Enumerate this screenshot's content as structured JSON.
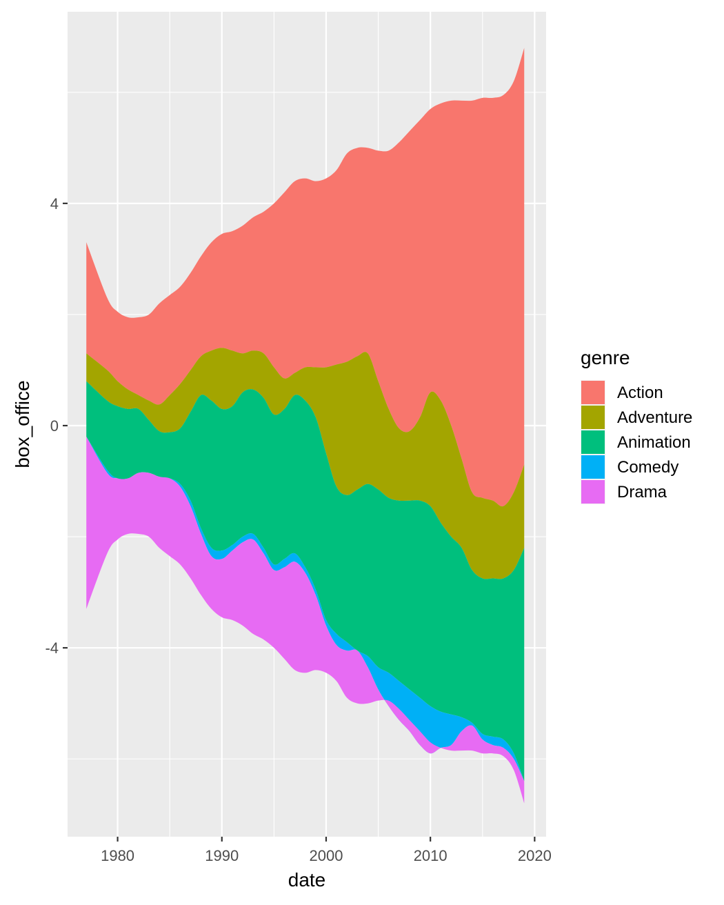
{
  "chart_data": {
    "type": "area",
    "subtype": "streamgraph",
    "xlabel": "date",
    "ylabel": "box_office",
    "xlim": [
      1975.2,
      2021.1
    ],
    "ylim": [
      -7.4,
      7.45
    ],
    "x_ticks": [
      1980,
      1990,
      2000,
      2010,
      2020
    ],
    "y_ticks": [
      -4,
      0,
      4
    ],
    "x_tick_labels": [
      "1980",
      "1990",
      "2000",
      "2010",
      "2020"
    ],
    "y_tick_labels": [
      "-4",
      "0",
      "4"
    ],
    "grid": true,
    "legend": {
      "title": "genre",
      "position": "right"
    },
    "x": [
      1977,
      1979,
      1980,
      1981,
      1982,
      1983,
      1984,
      1985,
      1986,
      1987,
      1988,
      1989,
      1990,
      1991,
      1992,
      1993,
      1994,
      1995,
      1996,
      1997,
      1998,
      1999,
      2000,
      2001,
      2002,
      2003,
      2004,
      2005,
      2006,
      2007,
      2008,
      2009,
      2010,
      2011,
      2012,
      2013,
      2014,
      2015,
      2016,
      2017,
      2018,
      2019
    ],
    "boundaries": {
      "Action_top": [
        3.3,
        2.3,
        2.05,
        1.95,
        1.95,
        2.0,
        2.2,
        2.35,
        2.5,
        2.75,
        3.05,
        3.3,
        3.45,
        3.5,
        3.6,
        3.75,
        3.85,
        4.0,
        4.2,
        4.4,
        4.45,
        4.4,
        4.45,
        4.6,
        4.9,
        5.0,
        5.0,
        4.95,
        4.95,
        5.1,
        5.3,
        5.5,
        5.7,
        5.8,
        5.85,
        5.85,
        5.85,
        5.9,
        5.9,
        5.95,
        6.2,
        6.8
      ],
      "Adventure_top": [
        1.3,
        1.0,
        0.8,
        0.65,
        0.55,
        0.45,
        0.38,
        0.55,
        0.75,
        1.0,
        1.25,
        1.35,
        1.4,
        1.35,
        1.3,
        1.35,
        1.3,
        1.05,
        0.85,
        0.95,
        1.05,
        1.05,
        1.05,
        1.1,
        1.15,
        1.25,
        1.3,
        0.8,
        0.3,
        -0.05,
        -0.1,
        0.15,
        0.6,
        0.45,
        0.0,
        -0.6,
        -1.2,
        -1.3,
        -1.35,
        -1.45,
        -1.2,
        -0.7
      ],
      "Animation_top": [
        0.8,
        0.45,
        0.35,
        0.3,
        0.3,
        0.1,
        -0.1,
        -0.12,
        -0.05,
        0.25,
        0.55,
        0.45,
        0.3,
        0.35,
        0.6,
        0.65,
        0.5,
        0.2,
        0.3,
        0.55,
        0.45,
        0.15,
        -0.5,
        -1.1,
        -1.25,
        -1.15,
        -1.05,
        -1.15,
        -1.3,
        -1.35,
        -1.35,
        -1.35,
        -1.45,
        -1.75,
        -2.0,
        -2.2,
        -2.6,
        -2.75,
        -2.75,
        -2.75,
        -2.6,
        -2.2
      ],
      "Comedy_top": [
        -0.2,
        -0.8,
        -0.95,
        -0.95,
        -0.85,
        -0.85,
        -0.92,
        -0.95,
        -1.05,
        -1.35,
        -1.85,
        -2.2,
        -2.25,
        -2.15,
        -2.0,
        -1.95,
        -2.2,
        -2.5,
        -2.4,
        -2.3,
        -2.55,
        -2.95,
        -3.5,
        -3.75,
        -3.9,
        -4.05,
        -4.15,
        -4.35,
        -4.45,
        -4.6,
        -4.75,
        -4.9,
        -5.05,
        -5.15,
        -5.2,
        -5.25,
        -5.35,
        -5.55,
        -5.6,
        -5.65,
        -5.9,
        -6.4
      ],
      "Drama_top": [
        -0.2,
        -0.85,
        -0.95,
        -0.95,
        -0.85,
        -0.85,
        -0.92,
        -0.95,
        -1.1,
        -1.45,
        -1.95,
        -2.35,
        -2.4,
        -2.25,
        -2.1,
        -2.05,
        -2.3,
        -2.6,
        -2.55,
        -2.45,
        -2.65,
        -3.05,
        -3.6,
        -3.95,
        -4.05,
        -4.05,
        -4.35,
        -4.75,
        -5.05,
        -5.3,
        -5.5,
        -5.75,
        -5.9,
        -5.8,
        -5.75,
        -5.5,
        -5.4,
        -5.65,
        -5.75,
        -5.8,
        -6.0,
        -6.4
      ],
      "Drama_bottom": [
        -3.3,
        -2.3,
        -2.05,
        -1.95,
        -1.95,
        -2.0,
        -2.2,
        -2.35,
        -2.5,
        -2.75,
        -3.05,
        -3.3,
        -3.45,
        -3.5,
        -3.6,
        -3.75,
        -3.85,
        -4.0,
        -4.2,
        -4.4,
        -4.45,
        -4.4,
        -4.45,
        -4.6,
        -4.9,
        -5.0,
        -5.0,
        -4.95,
        -4.95,
        -5.1,
        -5.3,
        -5.5,
        -5.7,
        -5.8,
        -5.85,
        -5.85,
        -5.85,
        -5.9,
        -5.9,
        -5.95,
        -6.2,
        -6.8
      ]
    },
    "series": [
      {
        "name": "Action",
        "color": "#F8766D",
        "upper": "Action_top",
        "lower": "Adventure_top"
      },
      {
        "name": "Adventure",
        "color": "#A3A500",
        "upper": "Adventure_top",
        "lower": "Animation_top"
      },
      {
        "name": "Animation",
        "color": "#00BF7D",
        "upper": "Animation_top",
        "lower": "Comedy_top"
      },
      {
        "name": "Comedy",
        "color": "#00B0F6",
        "upper": "Comedy_top",
        "lower": "Drama_top"
      },
      {
        "name": "Drama",
        "color": "#E76BF3",
        "upper": "Drama_top",
        "lower": "Drama_bottom"
      }
    ]
  }
}
